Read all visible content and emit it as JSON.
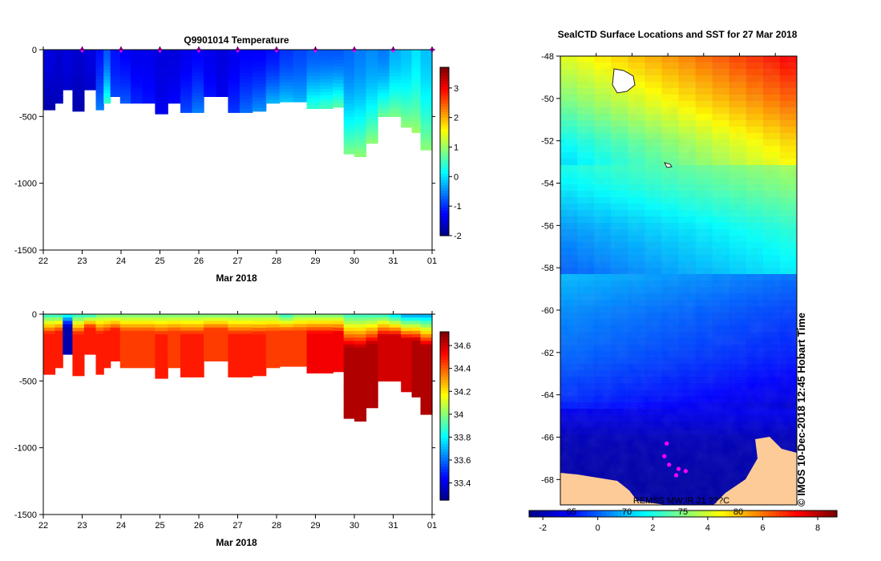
{
  "chart_data": [
    {
      "type": "heatmap",
      "title": "Q9901014  Temperature",
      "xlabel": "Mar 2018",
      "ylabel": "",
      "x_ticks": [
        "22",
        "23",
        "24",
        "25",
        "26",
        "27",
        "28",
        "29",
        "30",
        "31",
        "01"
      ],
      "y_ticks": [
        "0",
        "-500",
        "-1000",
        "-1500"
      ],
      "ylim": [
        -1500,
        0
      ],
      "colorbar": {
        "min": -2,
        "max": 3.7,
        "ticks": [
          "3",
          "2",
          "1",
          "0",
          "-1",
          "-2"
        ]
      },
      "profiles": [
        {
          "day": 22.2,
          "max_depth": 450,
          "surface": -1.5,
          "bottom": -1.8
        },
        {
          "day": 22.4,
          "max_depth": 400,
          "surface": -1.6,
          "bottom": -1.7
        },
        {
          "day": 22.6,
          "max_depth": 300,
          "surface": -1.5,
          "bottom": -1.6
        },
        {
          "day": 22.9,
          "max_depth": 460,
          "surface": -1.6,
          "bottom": -1.8
        },
        {
          "day": 23.2,
          "max_depth": 300,
          "surface": -1.5,
          "bottom": -1.6
        },
        {
          "day": 23.5,
          "max_depth": 450,
          "surface": -1.2,
          "bottom": -0.6
        },
        {
          "day": 23.6,
          "max_depth": 400,
          "surface": -0.8,
          "bottom": 0.4
        },
        {
          "day": 23.85,
          "max_depth": 350,
          "surface": -1.2,
          "bottom": -0.9
        },
        {
          "day": 24.1,
          "max_depth": 400,
          "surface": -1.3,
          "bottom": -0.8
        },
        {
          "day": 24.4,
          "max_depth": 400,
          "surface": -1.4,
          "bottom": -1.1
        },
        {
          "day": 24.7,
          "max_depth": 400,
          "surface": -1.4,
          "bottom": -1.2
        },
        {
          "day": 25.05,
          "max_depth": 480,
          "surface": -1.5,
          "bottom": -1.4
        },
        {
          "day": 25.35,
          "max_depth": 400,
          "surface": -1.5,
          "bottom": -1.3
        },
        {
          "day": 25.7,
          "max_depth": 470,
          "surface": -1.4,
          "bottom": -0.9
        },
        {
          "day": 25.95,
          "max_depth": 470,
          "surface": -1.3,
          "bottom": -0.6
        },
        {
          "day": 26.3,
          "max_depth": 350,
          "surface": -1.4,
          "bottom": -1.2
        },
        {
          "day": 26.6,
          "max_depth": 350,
          "surface": -1.5,
          "bottom": -1.4
        },
        {
          "day": 26.9,
          "max_depth": 470,
          "surface": -1.4,
          "bottom": -1.0
        },
        {
          "day": 27.2,
          "max_depth": 470,
          "surface": -1.3,
          "bottom": -0.7
        },
        {
          "day": 27.55,
          "max_depth": 460,
          "surface": -1.3,
          "bottom": -0.5
        },
        {
          "day": 27.9,
          "max_depth": 400,
          "surface": -1.2,
          "bottom": -0.3
        },
        {
          "day": 28.25,
          "max_depth": 390,
          "surface": -1.0,
          "bottom": -0.2
        },
        {
          "day": 28.6,
          "max_depth": 390,
          "surface": -0.9,
          "bottom": -0.3
        },
        {
          "day": 28.95,
          "max_depth": 440,
          "surface": -0.8,
          "bottom": 0.4
        },
        {
          "day": 29.3,
          "max_depth": 440,
          "surface": -0.8,
          "bottom": 0.5
        },
        {
          "day": 29.6,
          "max_depth": 430,
          "surface": -0.8,
          "bottom": 0.6
        },
        {
          "day": 29.85,
          "max_depth": 780,
          "surface": -0.7,
          "bottom": 0.8
        },
        {
          "day": 30.15,
          "max_depth": 800,
          "surface": -0.6,
          "bottom": 0.9
        },
        {
          "day": 30.45,
          "max_depth": 700,
          "surface": -0.5,
          "bottom": 0.9
        },
        {
          "day": 30.75,
          "max_depth": 500,
          "surface": -0.6,
          "bottom": 0.7
        },
        {
          "day": 31.05,
          "max_depth": 500,
          "surface": -0.3,
          "bottom": 0.8
        },
        {
          "day": 31.35,
          "max_depth": 580,
          "surface": -0.2,
          "bottom": 0.9
        },
        {
          "day": 31.6,
          "max_depth": 620,
          "surface": 0.0,
          "bottom": 1.0
        },
        {
          "day": 31.8,
          "max_depth": 750,
          "surface": -0.2,
          "bottom": 0.9
        }
      ],
      "markers": [
        23,
        24,
        25,
        26,
        27,
        28,
        29,
        30,
        31,
        32
      ]
    },
    {
      "type": "heatmap",
      "title": "",
      "xlabel": "Mar 2018",
      "ylabel": "",
      "x_ticks": [
        "22",
        "23",
        "24",
        "25",
        "26",
        "27",
        "28",
        "29",
        "30",
        "31",
        "01"
      ],
      "y_ticks": [
        "0",
        "-500",
        "-1000",
        "-1500"
      ],
      "ylim": [
        -1500,
        0
      ],
      "colorbar": {
        "min": 33.25,
        "max": 34.72,
        "ticks": [
          "34.6",
          "34.4",
          "34.2",
          "34",
          "33.8",
          "33.6",
          "33.4"
        ]
      },
      "profiles": [
        {
          "day": 22.2,
          "max_depth": 450,
          "surface": 33.9,
          "bottom": 34.5
        },
        {
          "day": 22.4,
          "max_depth": 400,
          "surface": 33.9,
          "bottom": 34.5
        },
        {
          "day": 22.6,
          "max_depth": 300,
          "surface": 33.8,
          "bottom": 33.3
        },
        {
          "day": 22.9,
          "max_depth": 460,
          "surface": 33.9,
          "bottom": 34.5
        },
        {
          "day": 23.2,
          "max_depth": 300,
          "surface": 33.9,
          "bottom": 34.5
        },
        {
          "day": 23.5,
          "max_depth": 450,
          "surface": 34.0,
          "bottom": 34.5
        },
        {
          "day": 23.6,
          "max_depth": 400,
          "surface": 34.0,
          "bottom": 34.5
        },
        {
          "day": 23.85,
          "max_depth": 350,
          "surface": 34.0,
          "bottom": 34.5
        },
        {
          "day": 24.1,
          "max_depth": 400,
          "surface": 34.0,
          "bottom": 34.45
        },
        {
          "day": 24.4,
          "max_depth": 400,
          "surface": 34.0,
          "bottom": 34.45
        },
        {
          "day": 24.7,
          "max_depth": 400,
          "surface": 34.0,
          "bottom": 34.45
        },
        {
          "day": 25.05,
          "max_depth": 480,
          "surface": 34.0,
          "bottom": 34.5
        },
        {
          "day": 25.35,
          "max_depth": 400,
          "surface": 34.0,
          "bottom": 34.45
        },
        {
          "day": 25.7,
          "max_depth": 470,
          "surface": 34.0,
          "bottom": 34.5
        },
        {
          "day": 25.95,
          "max_depth": 470,
          "surface": 34.0,
          "bottom": 34.5
        },
        {
          "day": 26.3,
          "max_depth": 350,
          "surface": 34.0,
          "bottom": 34.45
        },
        {
          "day": 26.6,
          "max_depth": 350,
          "surface": 34.0,
          "bottom": 34.45
        },
        {
          "day": 26.9,
          "max_depth": 470,
          "surface": 34.0,
          "bottom": 34.5
        },
        {
          "day": 27.2,
          "max_depth": 470,
          "surface": 34.0,
          "bottom": 34.5
        },
        {
          "day": 27.55,
          "max_depth": 460,
          "surface": 34.0,
          "bottom": 34.5
        },
        {
          "day": 27.9,
          "max_depth": 400,
          "surface": 34.0,
          "bottom": 34.45
        },
        {
          "day": 28.25,
          "max_depth": 390,
          "surface": 33.9,
          "bottom": 34.45
        },
        {
          "day": 28.6,
          "max_depth": 390,
          "surface": 34.0,
          "bottom": 34.45
        },
        {
          "day": 28.95,
          "max_depth": 440,
          "surface": 34.0,
          "bottom": 34.55
        },
        {
          "day": 29.3,
          "max_depth": 440,
          "surface": 34.0,
          "bottom": 34.55
        },
        {
          "day": 29.6,
          "max_depth": 430,
          "surface": 34.0,
          "bottom": 34.55
        },
        {
          "day": 29.85,
          "max_depth": 780,
          "surface": 33.9,
          "bottom": 34.65
        },
        {
          "day": 30.15,
          "max_depth": 800,
          "surface": 33.9,
          "bottom": 34.65
        },
        {
          "day": 30.45,
          "max_depth": 700,
          "surface": 33.9,
          "bottom": 34.65
        },
        {
          "day": 30.75,
          "max_depth": 500,
          "surface": 33.9,
          "bottom": 34.6
        },
        {
          "day": 31.05,
          "max_depth": 500,
          "surface": 33.8,
          "bottom": 34.6
        },
        {
          "day": 31.35,
          "max_depth": 580,
          "surface": 33.7,
          "bottom": 34.6
        },
        {
          "day": 31.6,
          "max_depth": 620,
          "surface": 33.7,
          "bottom": 34.65
        },
        {
          "day": 31.8,
          "max_depth": 750,
          "surface": 33.7,
          "bottom": 34.65
        }
      ]
    },
    {
      "type": "heatmap",
      "title": "SealCTD Surface Locations and SST for 27 Mar 2018",
      "y_ticks": [
        "-48",
        "-50",
        "-52",
        "-54",
        "-56",
        "-58",
        "-60",
        "-62",
        "-64",
        "-66",
        "-68"
      ],
      "ylim": [
        -69.2,
        -48
      ],
      "colorbar": {
        "min": -2.5,
        "max": 8.7,
        "ticks": [
          "-2",
          "0",
          "2",
          "4",
          "6",
          "8"
        ],
        "overlay_ticks": [
          "65",
          "70",
          "75",
          "80"
        ]
      },
      "sst_bands": [
        {
          "lat": -48,
          "sst": 5.4
        },
        {
          "lat": -50,
          "sst": 4.3
        },
        {
          "lat": -52,
          "sst": 3.0
        },
        {
          "lat": -54,
          "sst": 2.2
        },
        {
          "lat": -56,
          "sst": 1.2
        },
        {
          "lat": -58,
          "sst": 0.6
        },
        {
          "lat": -60,
          "sst": 0.0
        },
        {
          "lat": -62,
          "sst": -0.4
        },
        {
          "lat": -64,
          "sst": -1.0
        },
        {
          "lat": -66,
          "sst": -2.0
        },
        {
          "lat": -68,
          "sst": -2.2
        }
      ],
      "seal_locations": [
        {
          "lat": -66.3,
          "lon_frac": 0.45
        },
        {
          "lat": -66.9,
          "lon_frac": 0.44
        },
        {
          "lat": -67.3,
          "lon_frac": 0.46
        },
        {
          "lat": -67.5,
          "lon_frac": 0.5
        },
        {
          "lat": -67.6,
          "lon_frac": 0.53
        },
        {
          "lat": -67.8,
          "lon_frac": 0.49
        }
      ],
      "source_label": "REMSS MW:IR 21 ???C",
      "credit": "© IMOS 10-Dec-2018 12:45 Hobart Time"
    }
  ],
  "colors": {
    "jet": [
      "#00008f",
      "#0000ff",
      "#0080ff",
      "#00ffff",
      "#80ff80",
      "#ffff00",
      "#ff8000",
      "#ff0000",
      "#800000"
    ],
    "land": "#fccb97",
    "marker": "#ff00ff"
  }
}
